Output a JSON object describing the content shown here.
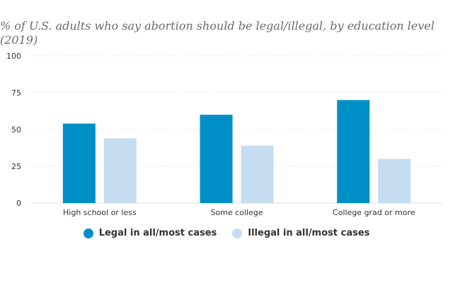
{
  "title": "% of U.S. adults who say abortion should be legal/illegal, by education level (2019)",
  "colors": {
    "legal": "#0090c8",
    "illegal": "#c6ddf0",
    "grid": "#dcdcdc",
    "text": "#333333"
  },
  "chart_data": {
    "type": "bar",
    "categories": [
      "High school or less",
      "Some college",
      "College grad or more"
    ],
    "series": [
      {
        "name": "Legal in all/most cases",
        "values": [
          54,
          60,
          70
        ]
      },
      {
        "name": "Illegal in all/most cases",
        "values": [
          44,
          39,
          30
        ]
      }
    ],
    "yticks": [
      0,
      25,
      50,
      75,
      100
    ],
    "ylim": [
      0,
      100
    ],
    "grid": true,
    "legend": "bottom"
  }
}
